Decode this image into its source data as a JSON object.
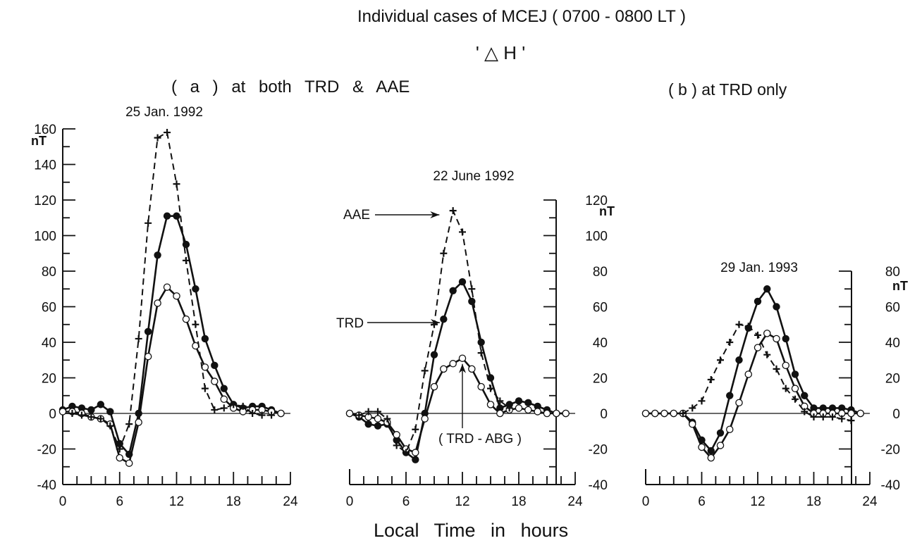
{
  "title": "Individual cases of  MCEJ  ( 0700 - 0800 LT )",
  "subtitle": "' △ H '",
  "group_labels": {
    "a": "( a )    at  both   TRD  &  AAE",
    "b": "( b )  at TRD only"
  },
  "xlabel": "Local  Time  in  hours",
  "unit_label": "nT",
  "annotations": {
    "aae": "AAE",
    "trd": "TRD",
    "trd_abg": "( TRD - ABG )"
  },
  "colors": {
    "ink": "#111111",
    "background": "#ffffff"
  },
  "chart_data": [
    {
      "type": "line",
      "title": "25 Jan. 1992",
      "xlim": [
        0,
        24
      ],
      "ylim": [
        -40,
        160
      ],
      "xticks": [
        0,
        6,
        12,
        18,
        24
      ],
      "yticks": [
        -40,
        -20,
        0,
        20,
        40,
        60,
        80,
        100,
        120,
        140,
        160
      ],
      "series": [
        {
          "name": "TRD",
          "marker": "filled-circle",
          "line": "solid",
          "x": [
            0,
            1,
            2,
            3,
            4,
            5,
            6,
            7,
            8,
            9,
            10,
            11,
            12,
            13,
            14,
            15,
            16,
            17,
            18,
            19,
            20,
            21,
            22,
            23
          ],
          "values": [
            2,
            4,
            3,
            2,
            5,
            1,
            -17,
            -23,
            0,
            46,
            89,
            111,
            111,
            95,
            70,
            42,
            27,
            14,
            5,
            3,
            4,
            4,
            2,
            0
          ]
        },
        {
          "name": "TRD - ABG",
          "marker": "open-circle",
          "line": "solid",
          "x": [
            0,
            1,
            2,
            3,
            4,
            5,
            6,
            7,
            8,
            9,
            10,
            11,
            12,
            13,
            14,
            15,
            16,
            17,
            18,
            19,
            20,
            21,
            22,
            23
          ],
          "values": [
            1,
            1,
            0,
            -2,
            -3,
            -6,
            -25,
            -28,
            -5,
            32,
            62,
            71,
            66,
            53,
            38,
            26,
            18,
            8,
            3,
            1,
            2,
            2,
            1,
            0
          ]
        },
        {
          "name": "AAE",
          "marker": "plus",
          "line": "dashed",
          "x": [
            1,
            2,
            3,
            4,
            5,
            6,
            7,
            8,
            9,
            10,
            11,
            12,
            13,
            14,
            15,
            16,
            17,
            18,
            19,
            20,
            21,
            22
          ],
          "values": [
            0,
            -1,
            -2,
            -3,
            -7,
            -20,
            -6,
            42,
            107,
            155,
            158,
            129,
            86,
            50,
            14,
            2,
            3,
            5,
            4,
            0,
            -1,
            -1
          ]
        }
      ]
    },
    {
      "type": "line",
      "title": "22  June 1992",
      "xlim": [
        0,
        24
      ],
      "ylim": [
        -40,
        120
      ],
      "xticks": [
        0,
        6,
        12,
        18,
        24
      ],
      "yticks": [
        -40,
        -20,
        0,
        20,
        40,
        60,
        80,
        100,
        120
      ],
      "series": [
        {
          "name": "TRD",
          "marker": "filled-circle",
          "line": "solid",
          "x": [
            0,
            1,
            2,
            3,
            4,
            5,
            6,
            7,
            8,
            9,
            10,
            11,
            12,
            13,
            14,
            15,
            16,
            17,
            18,
            19,
            20,
            21,
            22,
            23
          ],
          "values": [
            0,
            -2,
            -6,
            -7,
            -6,
            -15,
            -22,
            -26,
            0,
            33,
            53,
            69,
            74,
            63,
            40,
            20,
            3,
            5,
            7,
            6,
            4,
            2,
            0,
            0
          ]
        },
        {
          "name": "TRD - ABG",
          "marker": "open-circle",
          "line": "solid",
          "x": [
            0,
            1,
            2,
            3,
            4,
            5,
            6,
            7,
            8,
            9,
            10,
            11,
            12,
            13,
            14,
            15,
            16,
            17,
            18,
            19,
            20,
            21,
            22,
            23
          ],
          "values": [
            0,
            -1,
            -2,
            -3,
            -5,
            -12,
            -20,
            -22,
            -3,
            15,
            25,
            28,
            31,
            25,
            15,
            5,
            0,
            2,
            3,
            2,
            1,
            0,
            0,
            0
          ]
        },
        {
          "name": "AAE",
          "marker": "plus",
          "line": "dashed",
          "x": [
            1,
            2,
            3,
            4,
            5,
            6,
            7,
            8,
            9,
            10,
            11,
            12,
            13,
            14,
            15,
            16,
            17
          ],
          "values": [
            -1,
            1,
            1,
            -3,
            -18,
            -22,
            -9,
            24,
            50,
            90,
            114,
            102,
            70,
            34,
            14,
            7,
            3
          ]
        }
      ]
    },
    {
      "type": "line",
      "title": "29 Jan. 1993",
      "xlim": [
        0,
        24
      ],
      "ylim": [
        -40,
        80
      ],
      "xticks": [
        0,
        6,
        12,
        18,
        24
      ],
      "yticks": [
        -40,
        -20,
        0,
        20,
        40,
        60,
        80
      ],
      "series": [
        {
          "name": "TRD",
          "marker": "filled-circle",
          "line": "solid",
          "x": [
            0,
            1,
            2,
            3,
            4,
            5,
            6,
            7,
            8,
            9,
            10,
            11,
            12,
            13,
            14,
            15,
            16,
            17,
            18,
            19,
            20,
            21,
            22,
            23
          ],
          "values": [
            0,
            0,
            0,
            0,
            0,
            -5,
            -15,
            -21,
            -11,
            10,
            30,
            48,
            63,
            70,
            60,
            42,
            22,
            10,
            3,
            3,
            3,
            3,
            2,
            0
          ]
        },
        {
          "name": "TRD - ABG",
          "marker": "open-circle",
          "line": "solid",
          "x": [
            0,
            1,
            2,
            3,
            4,
            5,
            6,
            7,
            8,
            9,
            10,
            11,
            12,
            13,
            14,
            15,
            16,
            17,
            18,
            19,
            20,
            21,
            22,
            23
          ],
          "values": [
            0,
            0,
            0,
            0,
            0,
            -6,
            -19,
            -25,
            -18,
            -9,
            6,
            22,
            37,
            45,
            42,
            27,
            14,
            4,
            0,
            0,
            0,
            0,
            0,
            0
          ]
        },
        {
          "name": "AAE",
          "marker": "plus",
          "line": "dashed",
          "x": [
            4,
            5,
            6,
            7,
            8,
            9,
            10,
            11,
            12,
            13,
            14,
            15,
            16,
            17,
            18,
            19,
            20,
            21,
            22
          ],
          "values": [
            0,
            3,
            7,
            19,
            30,
            40,
            50,
            49,
            44,
            33,
            25,
            14,
            8,
            1,
            -2,
            -2,
            -2,
            -3,
            -4
          ]
        }
      ]
    }
  ]
}
